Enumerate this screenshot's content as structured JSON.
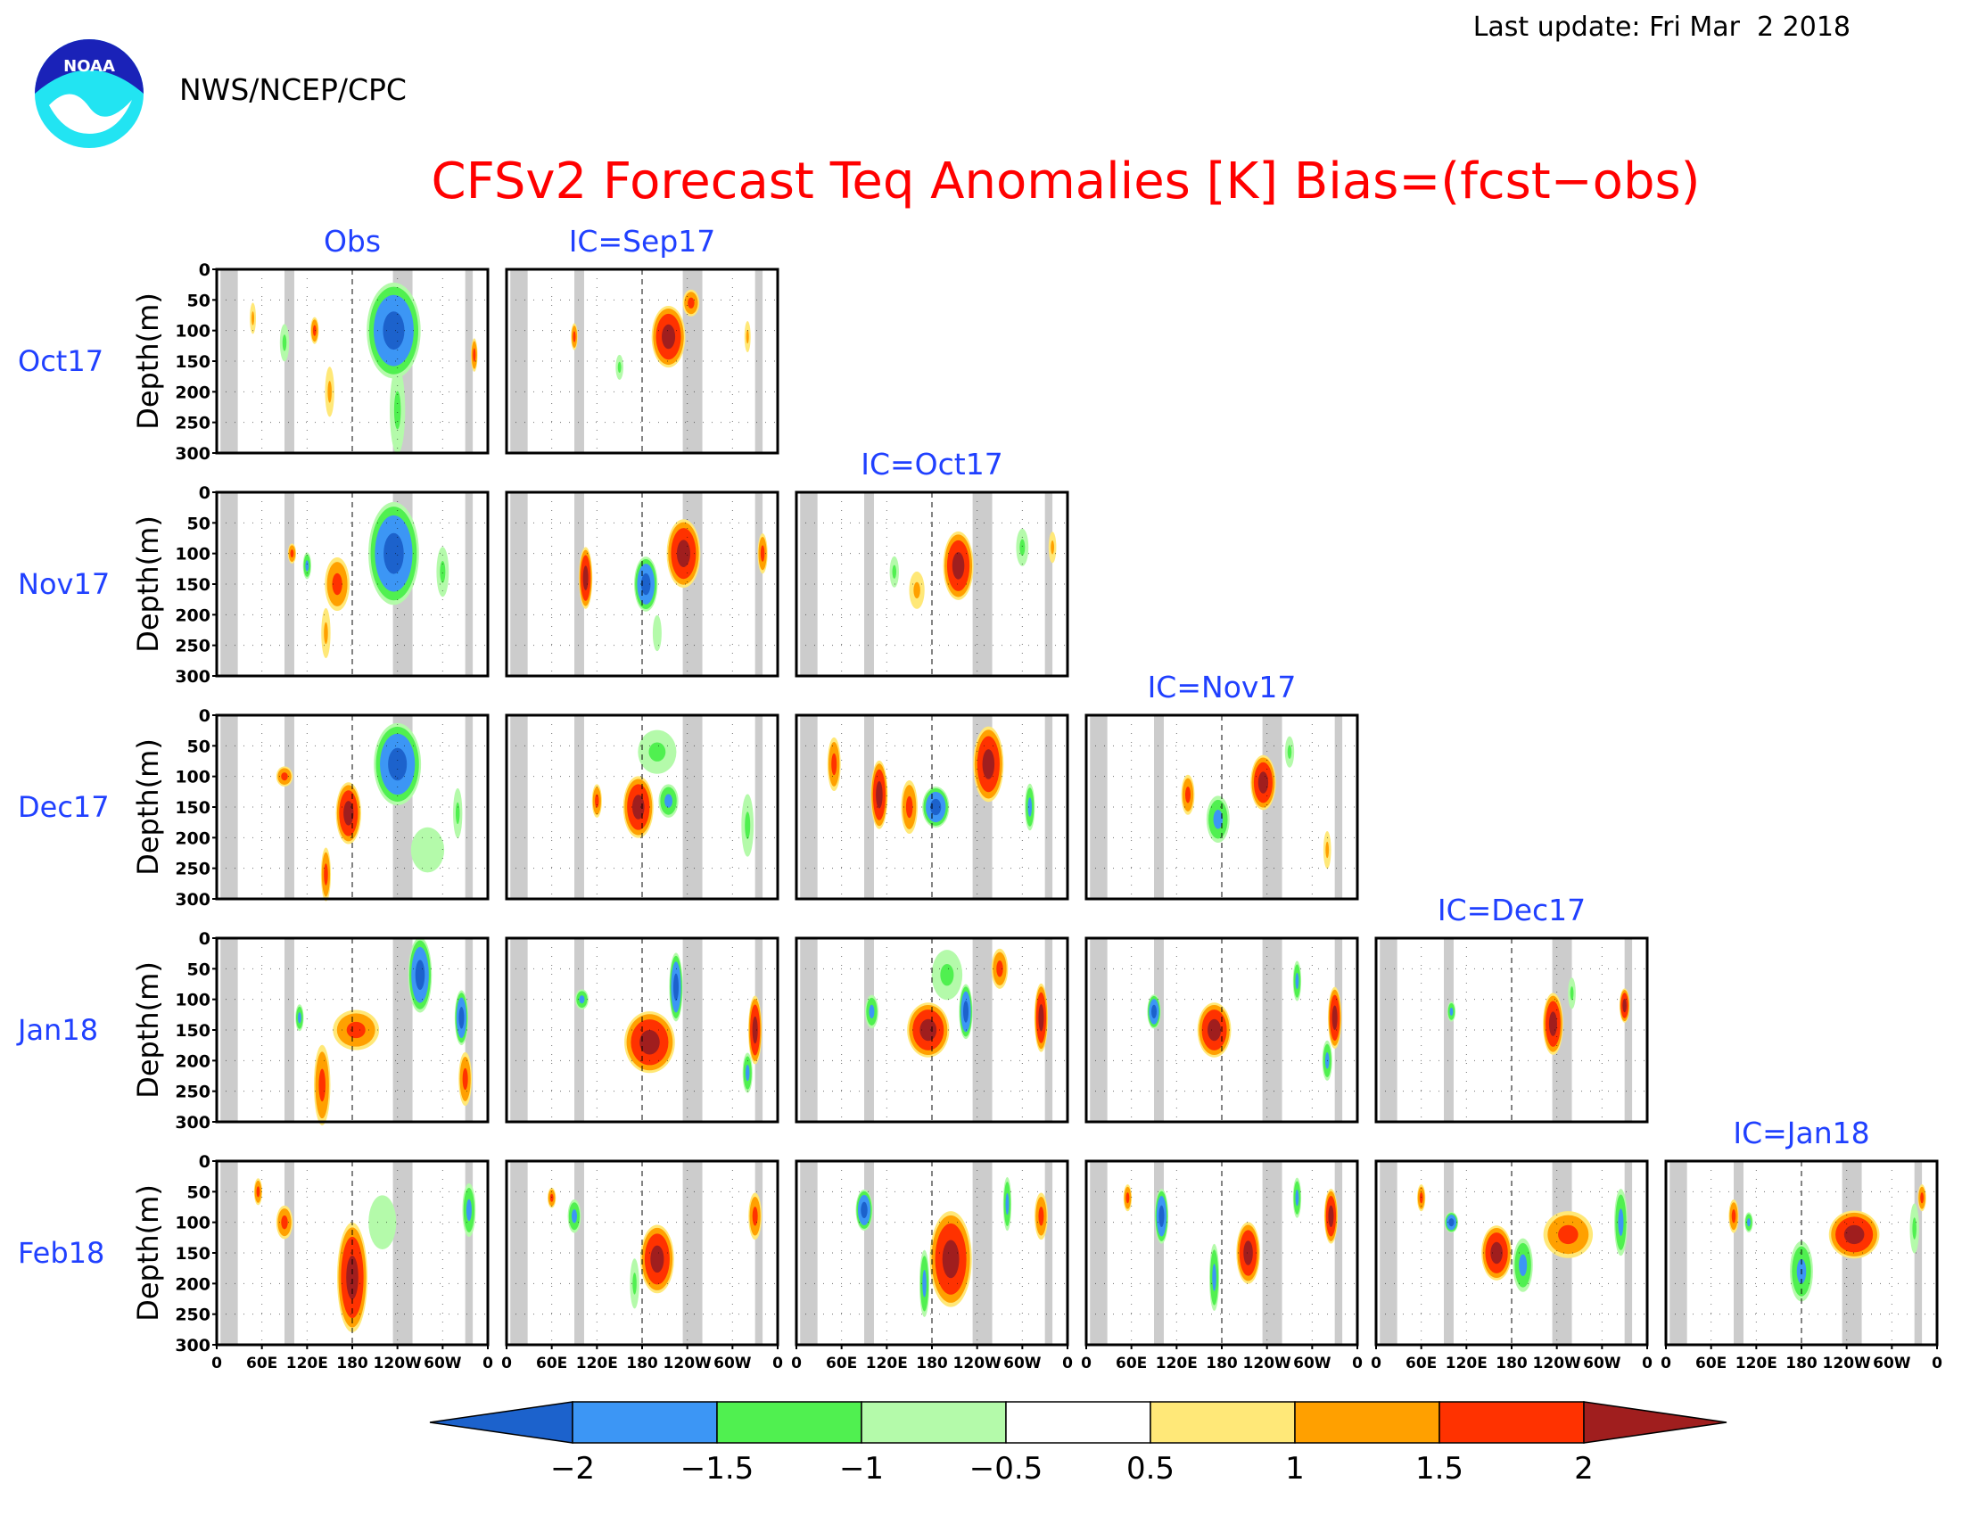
{
  "header": {
    "last_update": "Last update: Fri Mar  2 2018",
    "agency": "NWS/NCEP/CPC",
    "logo_text": "NOAA"
  },
  "chart_data": {
    "type": "heatmap",
    "title": "CFSv2 Forecast Teq Anomalies [K] Bias=(fcst−obs)",
    "ylabel": "Depth(m)",
    "y_ticks": [
      "0",
      "50",
      "100",
      "150",
      "200",
      "250",
      "300"
    ],
    "x_ticks": [
      "0",
      "60E",
      "120E",
      "180",
      "120W",
      "60W",
      "0"
    ],
    "ylim": [
      300,
      0
    ],
    "columns": [
      "Obs",
      "IC=Sep17",
      "IC=Oct17",
      "IC=Nov17",
      "IC=Dec17",
      "IC=Jan18"
    ],
    "rows": [
      "Oct17",
      "Nov17",
      "Dec17",
      "Jan18",
      "Feb18"
    ],
    "colorbar": {
      "ticks": [
        "−2",
        "−1.5",
        "−1",
        "−0.5",
        "0.5",
        "1",
        "1.5",
        "2"
      ],
      "colors": [
        "#1c62cc",
        "#3c96f5",
        "#50f050",
        "#b4faaa",
        "#ffffff",
        "#ffe878",
        "#ffa000",
        "#ff3200",
        "#a01e1e"
      ]
    },
    "land_shading": "#cccccc",
    "panels": [
      {
        "row": 0,
        "col": 0,
        "blobs": [
          {
            "x": 235,
            "d": 100,
            "rx": 32,
            "rd": 70,
            "v": -2
          },
          {
            "x": 240,
            "d": 230,
            "rx": 10,
            "rd": 70,
            "v": -1
          },
          {
            "x": 130,
            "d": 100,
            "rx": 5,
            "rd": 20,
            "v": 1.5
          },
          {
            "x": 150,
            "d": 200,
            "rx": 6,
            "rd": 40,
            "v": 1
          },
          {
            "x": 90,
            "d": 120,
            "rx": 6,
            "rd": 30,
            "v": -1
          },
          {
            "x": 342,
            "d": 140,
            "rx": 4,
            "rd": 25,
            "v": 1.5
          },
          {
            "x": 48,
            "d": 80,
            "rx": 4,
            "rd": 25,
            "v": 1
          }
        ]
      },
      {
        "row": 0,
        "col": 1,
        "blobs": [
          {
            "x": 215,
            "d": 110,
            "rx": 20,
            "rd": 45,
            "v": 2
          },
          {
            "x": 245,
            "d": 55,
            "rx": 10,
            "rd": 20,
            "v": 1.5
          },
          {
            "x": 150,
            "d": 160,
            "rx": 5,
            "rd": 20,
            "v": -1
          },
          {
            "x": 320,
            "d": 110,
            "rx": 4,
            "rd": 25,
            "v": 1
          },
          {
            "x": 90,
            "d": 110,
            "rx": 4,
            "rd": 20,
            "v": 1.5
          }
        ]
      },
      {
        "row": 1,
        "col": 0,
        "blobs": [
          {
            "x": 235,
            "d": 100,
            "rx": 30,
            "rd": 75,
            "v": -2
          },
          {
            "x": 160,
            "d": 150,
            "rx": 15,
            "rd": 40,
            "v": 1.5
          },
          {
            "x": 145,
            "d": 230,
            "rx": 6,
            "rd": 40,
            "v": 1
          },
          {
            "x": 300,
            "d": 130,
            "rx": 8,
            "rd": 40,
            "v": -1
          },
          {
            "x": 120,
            "d": 120,
            "rx": 5,
            "rd": 20,
            "v": -1.5
          },
          {
            "x": 100,
            "d": 100,
            "rx": 5,
            "rd": 15,
            "v": 1.5
          }
        ]
      },
      {
        "row": 1,
        "col": 1,
        "blobs": [
          {
            "x": 235,
            "d": 100,
            "rx": 20,
            "rd": 50,
            "v": 2
          },
          {
            "x": 185,
            "d": 150,
            "rx": 14,
            "rd": 40,
            "v": -2
          },
          {
            "x": 105,
            "d": 140,
            "rx": 8,
            "rd": 45,
            "v": 2
          },
          {
            "x": 340,
            "d": 100,
            "rx": 6,
            "rd": 30,
            "v": 1.5
          },
          {
            "x": 200,
            "d": 230,
            "rx": 8,
            "rd": 40,
            "v": -0.6
          }
        ]
      },
      {
        "row": 1,
        "col": 2,
        "blobs": [
          {
            "x": 215,
            "d": 120,
            "rx": 18,
            "rd": 50,
            "v": 2
          },
          {
            "x": 130,
            "d": 130,
            "rx": 6,
            "rd": 25,
            "v": -1
          },
          {
            "x": 160,
            "d": 160,
            "rx": 10,
            "rd": 30,
            "v": 1
          },
          {
            "x": 300,
            "d": 90,
            "rx": 8,
            "rd": 30,
            "v": -1
          },
          {
            "x": 340,
            "d": 90,
            "rx": 5,
            "rd": 25,
            "v": 1
          }
        ]
      },
      {
        "row": 2,
        "col": 0,
        "blobs": [
          {
            "x": 240,
            "d": 80,
            "rx": 28,
            "rd": 60,
            "v": -2
          },
          {
            "x": 175,
            "d": 160,
            "rx": 15,
            "rd": 45,
            "v": 2
          },
          {
            "x": 145,
            "d": 260,
            "rx": 6,
            "rd": 40,
            "v": 1.5
          },
          {
            "x": 90,
            "d": 100,
            "rx": 10,
            "rd": 15,
            "v": 1.5
          },
          {
            "x": 320,
            "d": 160,
            "rx": 6,
            "rd": 40,
            "v": -1
          },
          {
            "x": 280,
            "d": 220,
            "rx": 30,
            "rd": 50,
            "v": -0.6
          }
        ]
      },
      {
        "row": 2,
        "col": 1,
        "blobs": [
          {
            "x": 175,
            "d": 150,
            "rx": 18,
            "rd": 45,
            "v": 2
          },
          {
            "x": 215,
            "d": 140,
            "rx": 12,
            "rd": 25,
            "v": -1.5
          },
          {
            "x": 120,
            "d": 140,
            "rx": 6,
            "rd": 25,
            "v": 1.5
          },
          {
            "x": 320,
            "d": 180,
            "rx": 8,
            "rd": 50,
            "v": -1
          },
          {
            "x": 200,
            "d": 60,
            "rx": 25,
            "rd": 35,
            "v": -1
          }
        ]
      },
      {
        "row": 2,
        "col": 2,
        "blobs": [
          {
            "x": 255,
            "d": 80,
            "rx": 18,
            "rd": 55,
            "v": 2
          },
          {
            "x": 185,
            "d": 150,
            "rx": 16,
            "rd": 30,
            "v": -2
          },
          {
            "x": 110,
            "d": 130,
            "rx": 10,
            "rd": 50,
            "v": 2
          },
          {
            "x": 50,
            "d": 80,
            "rx": 8,
            "rd": 40,
            "v": 1.5
          },
          {
            "x": 310,
            "d": 150,
            "rx": 6,
            "rd": 35,
            "v": -1.5
          },
          {
            "x": 150,
            "d": 150,
            "rx": 10,
            "rd": 40,
            "v": 1.5
          }
        ]
      },
      {
        "row": 2,
        "col": 3,
        "blobs": [
          {
            "x": 235,
            "d": 110,
            "rx": 15,
            "rd": 40,
            "v": 2
          },
          {
            "x": 175,
            "d": 170,
            "rx": 14,
            "rd": 35,
            "v": -1.5
          },
          {
            "x": 135,
            "d": 130,
            "rx": 8,
            "rd": 30,
            "v": 1.5
          },
          {
            "x": 270,
            "d": 60,
            "rx": 6,
            "rd": 25,
            "v": -1
          },
          {
            "x": 320,
            "d": 220,
            "rx": 5,
            "rd": 30,
            "v": 1
          }
        ]
      },
      {
        "row": 3,
        "col": 0,
        "blobs": [
          {
            "x": 270,
            "d": 60,
            "rx": 14,
            "rd": 55,
            "v": -2
          },
          {
            "x": 185,
            "d": 150,
            "rx": 28,
            "rd": 30,
            "v": 1.5
          },
          {
            "x": 140,
            "d": 240,
            "rx": 10,
            "rd": 60,
            "v": 1.5
          },
          {
            "x": 325,
            "d": 130,
            "rx": 8,
            "rd": 40,
            "v": -2
          },
          {
            "x": 330,
            "d": 230,
            "rx": 8,
            "rd": 40,
            "v": 1.5
          },
          {
            "x": 110,
            "d": 130,
            "rx": 5,
            "rd": 20,
            "v": -1.5
          }
        ]
      },
      {
        "row": 3,
        "col": 1,
        "blobs": [
          {
            "x": 190,
            "d": 170,
            "rx": 30,
            "rd": 45,
            "v": 2
          },
          {
            "x": 225,
            "d": 80,
            "rx": 8,
            "rd": 50,
            "v": -2
          },
          {
            "x": 100,
            "d": 100,
            "rx": 8,
            "rd": 15,
            "v": -1.5
          },
          {
            "x": 330,
            "d": 150,
            "rx": 8,
            "rd": 50,
            "v": 2
          },
          {
            "x": 320,
            "d": 220,
            "rx": 6,
            "rd": 30,
            "v": -1.5
          }
        ]
      },
      {
        "row": 3,
        "col": 2,
        "blobs": [
          {
            "x": 175,
            "d": 150,
            "rx": 25,
            "rd": 40,
            "v": 2
          },
          {
            "x": 225,
            "d": 120,
            "rx": 8,
            "rd": 40,
            "v": -2
          },
          {
            "x": 270,
            "d": 50,
            "rx": 10,
            "rd": 30,
            "v": 1.5
          },
          {
            "x": 325,
            "d": 130,
            "rx": 8,
            "rd": 50,
            "v": 2
          },
          {
            "x": 100,
            "d": 120,
            "rx": 8,
            "rd": 25,
            "v": -1.5
          },
          {
            "x": 200,
            "d": 60,
            "rx": 20,
            "rd": 40,
            "v": -1
          }
        ]
      },
      {
        "row": 3,
        "col": 3,
        "blobs": [
          {
            "x": 170,
            "d": 150,
            "rx": 20,
            "rd": 40,
            "v": 2
          },
          {
            "x": 90,
            "d": 120,
            "rx": 8,
            "rd": 25,
            "v": -2
          },
          {
            "x": 330,
            "d": 130,
            "rx": 8,
            "rd": 45,
            "v": 2
          },
          {
            "x": 320,
            "d": 200,
            "rx": 6,
            "rd": 30,
            "v": -1.5
          },
          {
            "x": 280,
            "d": 70,
            "rx": 5,
            "rd": 30,
            "v": -1.5
          }
        ]
      },
      {
        "row": 3,
        "col": 4,
        "blobs": [
          {
            "x": 235,
            "d": 140,
            "rx": 12,
            "rd": 45,
            "v": 2
          },
          {
            "x": 330,
            "d": 110,
            "rx": 6,
            "rd": 25,
            "v": 2
          },
          {
            "x": 100,
            "d": 120,
            "rx": 5,
            "rd": 15,
            "v": -1.5
          },
          {
            "x": 260,
            "d": 90,
            "rx": 5,
            "rd": 25,
            "v": -1
          }
        ]
      },
      {
        "row": 4,
        "col": 0,
        "blobs": [
          {
            "x": 180,
            "d": 190,
            "rx": 18,
            "rd": 80,
            "v": 2
          },
          {
            "x": 90,
            "d": 100,
            "rx": 10,
            "rd": 25,
            "v": 1.5
          },
          {
            "x": 335,
            "d": 80,
            "rx": 8,
            "rd": 40,
            "v": -1.5
          },
          {
            "x": 55,
            "d": 50,
            "rx": 5,
            "rd": 20,
            "v": 1.5
          },
          {
            "x": 220,
            "d": 100,
            "rx": 25,
            "rd": 60,
            "v": -0.6
          }
        ]
      },
      {
        "row": 4,
        "col": 1,
        "blobs": [
          {
            "x": 200,
            "d": 160,
            "rx": 20,
            "rd": 50,
            "v": 2
          },
          {
            "x": 90,
            "d": 90,
            "rx": 8,
            "rd": 25,
            "v": -1.5
          },
          {
            "x": 330,
            "d": 90,
            "rx": 8,
            "rd": 35,
            "v": 1.5
          },
          {
            "x": 170,
            "d": 200,
            "rx": 6,
            "rd": 40,
            "v": -1
          },
          {
            "x": 60,
            "d": 60,
            "rx": 5,
            "rd": 15,
            "v": 1.5
          }
        ]
      },
      {
        "row": 4,
        "col": 2,
        "blobs": [
          {
            "x": 205,
            "d": 160,
            "rx": 25,
            "rd": 70,
            "v": 2
          },
          {
            "x": 90,
            "d": 80,
            "rx": 10,
            "rd": 30,
            "v": -2
          },
          {
            "x": 325,
            "d": 90,
            "rx": 8,
            "rd": 35,
            "v": 1.5
          },
          {
            "x": 170,
            "d": 200,
            "rx": 6,
            "rd": 50,
            "v": -1.5
          },
          {
            "x": 280,
            "d": 70,
            "rx": 5,
            "rd": 40,
            "v": -1.5
          }
        ]
      },
      {
        "row": 4,
        "col": 3,
        "blobs": [
          {
            "x": 215,
            "d": 150,
            "rx": 14,
            "rd": 45,
            "v": 2
          },
          {
            "x": 100,
            "d": 90,
            "rx": 8,
            "rd": 40,
            "v": -2
          },
          {
            "x": 55,
            "d": 60,
            "rx": 5,
            "rd": 20,
            "v": 1.5
          },
          {
            "x": 170,
            "d": 190,
            "rx": 6,
            "rd": 50,
            "v": -1.5
          },
          {
            "x": 325,
            "d": 90,
            "rx": 8,
            "rd": 40,
            "v": 2
          },
          {
            "x": 280,
            "d": 60,
            "rx": 5,
            "rd": 30,
            "v": -1.5
          }
        ]
      },
      {
        "row": 4,
        "col": 4,
        "blobs": [
          {
            "x": 255,
            "d": 120,
            "rx": 30,
            "rd": 35,
            "v": 1.5
          },
          {
            "x": 160,
            "d": 150,
            "rx": 18,
            "rd": 40,
            "v": 2
          },
          {
            "x": 195,
            "d": 170,
            "rx": 12,
            "rd": 40,
            "v": -1.5
          },
          {
            "x": 100,
            "d": 100,
            "rx": 8,
            "rd": 15,
            "v": -2
          },
          {
            "x": 325,
            "d": 100,
            "rx": 8,
            "rd": 50,
            "v": -1.5
          },
          {
            "x": 60,
            "d": 60,
            "rx": 5,
            "rd": 20,
            "v": 1.5
          }
        ]
      },
      {
        "row": 4,
        "col": 5,
        "blobs": [
          {
            "x": 250,
            "d": 120,
            "rx": 30,
            "rd": 35,
            "v": 2
          },
          {
            "x": 180,
            "d": 180,
            "rx": 14,
            "rd": 45,
            "v": -1.5
          },
          {
            "x": 90,
            "d": 90,
            "rx": 6,
            "rd": 25,
            "v": 1.5
          },
          {
            "x": 330,
            "d": 110,
            "rx": 6,
            "rd": 40,
            "v": -1
          },
          {
            "x": 340,
            "d": 60,
            "rx": 5,
            "rd": 20,
            "v": 1.5
          },
          {
            "x": 110,
            "d": 100,
            "rx": 5,
            "rd": 15,
            "v": -1.5
          }
        ]
      }
    ]
  }
}
